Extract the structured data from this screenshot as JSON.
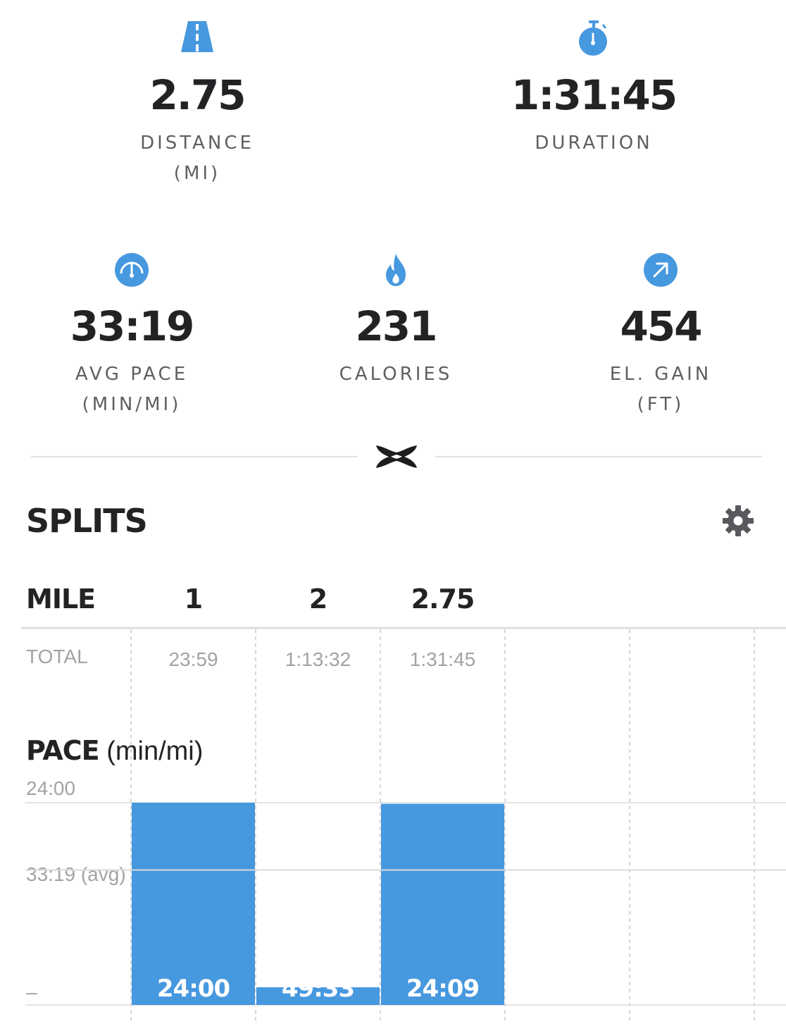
{
  "stats": [
    {
      "id": "distance",
      "value": "2.75",
      "label": "DISTANCE",
      "unit": "(MI)",
      "icon": "road-icon"
    },
    {
      "id": "duration",
      "value": "1:31:45",
      "label": "DURATION",
      "unit": "",
      "icon": "stopwatch-icon"
    },
    {
      "id": "avg_pace",
      "value": "33:19",
      "label": "AVG PACE",
      "unit": "(MIN/MI)",
      "icon": "speedometer-icon"
    },
    {
      "id": "calories",
      "value": "231",
      "label": "CALORIES",
      "unit": "",
      "icon": "flame-icon"
    },
    {
      "id": "el_gain",
      "value": "454",
      "label": "EL. GAIN",
      "unit": "(FT)",
      "icon": "arrow-up-right-icon"
    }
  ],
  "splits": {
    "title": "SPLITS",
    "header_label": "MILE",
    "total_label": "TOTAL",
    "miles": [
      "1",
      "2",
      "2.75"
    ],
    "totals": [
      "23:59",
      "1:13:32",
      "1:31:45"
    ]
  },
  "pace": {
    "title": "PACE",
    "unit": "(min/mi)",
    "top_label": "24:00",
    "avg_label": "33:19 (avg)",
    "bottom_label": "–"
  },
  "chart_data": {
    "type": "bar",
    "categories": [
      "1",
      "2",
      "2.75"
    ],
    "values_min_per_mi": [
      24.0,
      49.55,
      24.15
    ],
    "value_labels": [
      "24:00",
      "49:33",
      "24:09"
    ],
    "avg": 33.32,
    "inverted_axis": true,
    "ylim": [
      24.0,
      52.0
    ],
    "xlabel": "",
    "ylabel": "",
    "bar_color": "#4698df"
  },
  "colors": {
    "accent": "#4698df",
    "text": "#232326",
    "muted": "#a3a3a6"
  }
}
